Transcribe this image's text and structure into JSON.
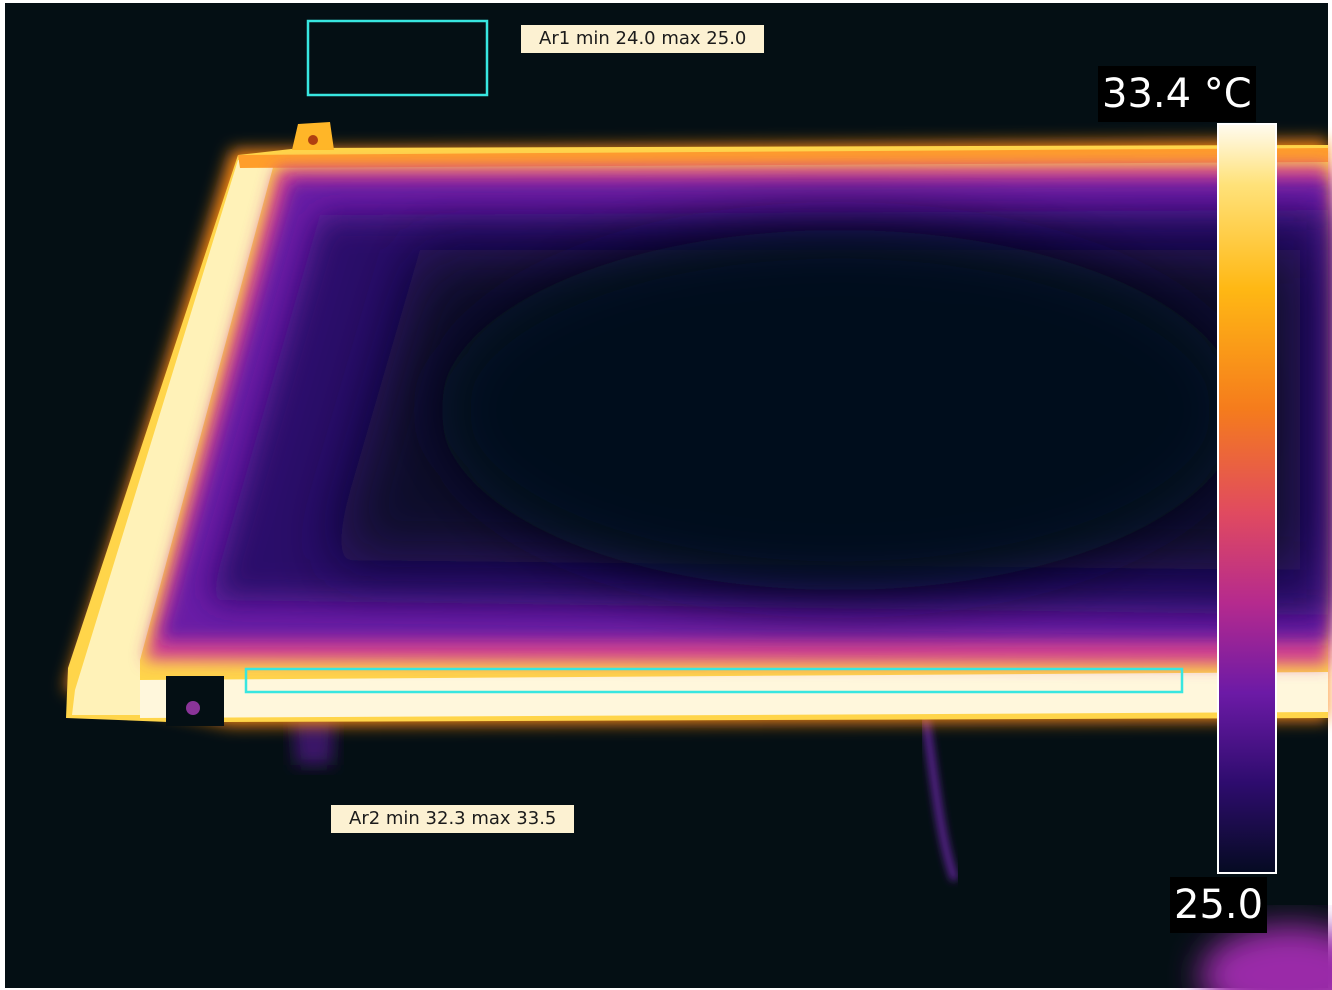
{
  "image": {
    "subject": "thermal image of a flat panel with heated frame",
    "palette": [
      "#040f14",
      "#14093a",
      "#5a1598",
      "#c83a8a",
      "#f0601e",
      "#ff9f0c",
      "#ffd24a",
      "#fff8d8"
    ],
    "roi_color": "#38e6e0"
  },
  "areas": [
    {
      "label": "Ar1 min 24.0 max 25.0"
    },
    {
      "label": "Ar2 min 32.3 max 33.5"
    }
  ],
  "scale": {
    "max_label": "33.4 °C",
    "min_label": "25.0",
    "max_value": 33.4,
    "min_value": 25.0
  }
}
